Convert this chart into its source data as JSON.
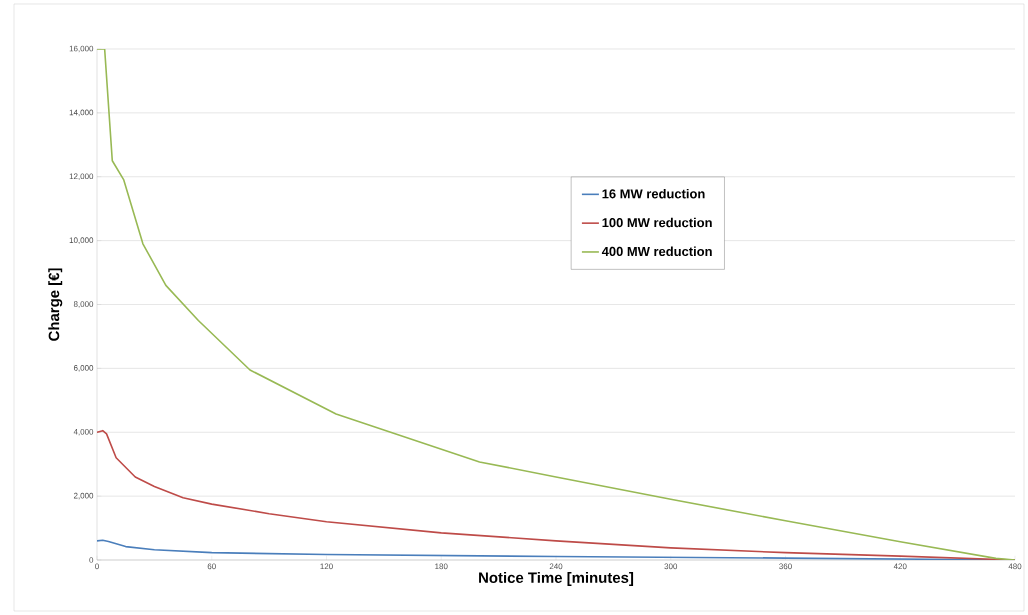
{
  "chart_data": {
    "type": "line",
    "xlabel": "Notice Time [minutes]",
    "ylabel": "Charge [€]",
    "xlim": [
      0,
      480
    ],
    "xticks": [
      0,
      60,
      120,
      180,
      240,
      300,
      360,
      420,
      480
    ],
    "ylim": [
      0,
      16000
    ],
    "yticks": [
      0,
      {
        "value": 2000,
        "label": "2,000"
      },
      {
        "value": 4000,
        "label": "4,000"
      },
      {
        "value": 6000,
        "label": "6,000"
      },
      {
        "value": 8000,
        "label": "8,000"
      },
      {
        "value": 10000,
        "label": "10,000"
      },
      {
        "value": 12000,
        "label": "12,000"
      },
      {
        "value": 14000,
        "label": "14,000"
      },
      {
        "value": 16000,
        "label": "16,000"
      }
    ],
    "grid": "y",
    "legend": "top",
    "series": [
      {
        "name": "16 MW reduction",
        "color": "#4a7ebb",
        "x": [
          0,
          3,
          6,
          15,
          30,
          60,
          120,
          240,
          360,
          480
        ],
        "values": [
          600,
          620,
          580,
          420,
          320,
          230,
          170,
          110,
          60,
          0
        ]
      },
      {
        "name": "100 MW reduction",
        "color": "#be4b48",
        "x": [
          0,
          3,
          5,
          10,
          20,
          30,
          45,
          60,
          90,
          120,
          180,
          240,
          300,
          360,
          420,
          480
        ],
        "values": [
          4000,
          4050,
          3950,
          3200,
          2600,
          2300,
          1950,
          1750,
          1450,
          1200,
          850,
          600,
          380,
          230,
          120,
          0
        ]
      },
      {
        "name": "400 MW reduction",
        "color": "#98b954",
        "x": [
          0,
          4,
          8,
          14,
          24,
          36,
          53,
          80,
          125,
          200,
          240,
          300,
          360,
          420,
          470,
          480
        ],
        "values": [
          16000,
          16000,
          12500,
          11900,
          9900,
          8600,
          7500,
          5950,
          4570,
          3070,
          2600,
          1900,
          1230,
          570,
          50,
          0
        ]
      }
    ]
  }
}
